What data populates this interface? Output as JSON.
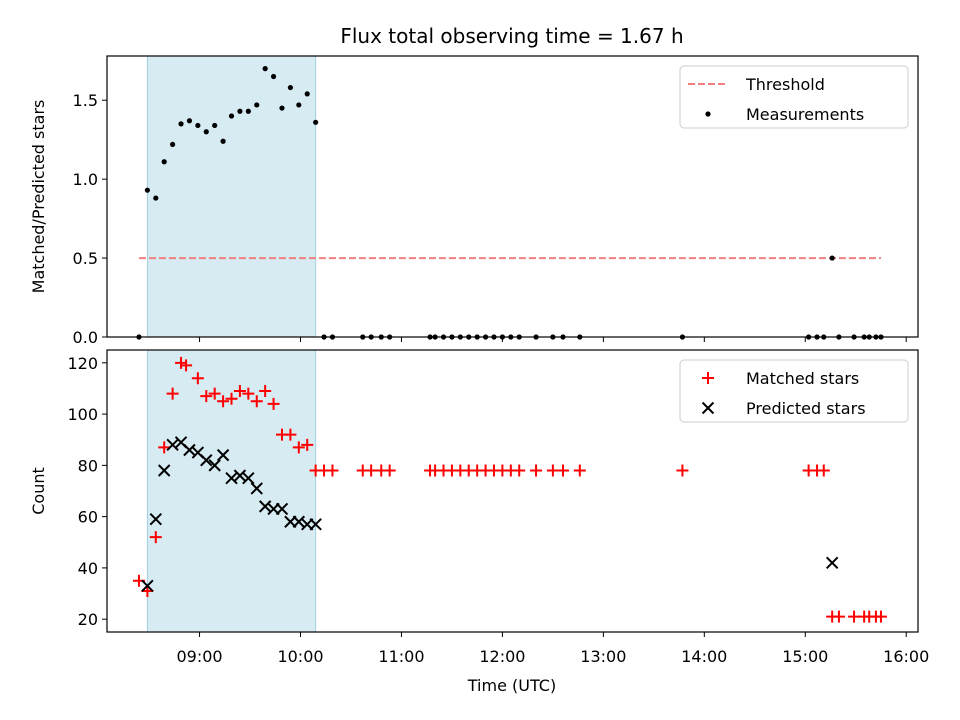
{
  "title": "Flux total observing time = 1.67 h",
  "xlabel": "Time (UTC)",
  "chart_data": [
    {
      "type": "scatter",
      "ylabel": "Matched/Predicted stars",
      "ylim": [
        0,
        1.78
      ],
      "xlim": [
        "08:05",
        "16:07"
      ],
      "yticks": [
        "0.0",
        "0.5",
        "1.0",
        "1.5"
      ],
      "shaded_interval": [
        "08:29",
        "10:09"
      ],
      "threshold": {
        "name": "Threshold",
        "y": 0.5,
        "x": [
          "08:24",
          "15:45"
        ],
        "color": "#f08080"
      },
      "legend": {
        "position": "upper right",
        "entries": [
          "Threshold",
          "Measurements"
        ]
      },
      "series": [
        {
          "name": "Measurements",
          "color": "#000000",
          "x": [
            "08:24",
            "08:29",
            "08:34",
            "08:39",
            "08:44",
            "08:49",
            "08:54",
            "08:59",
            "09:04",
            "09:09",
            "09:14",
            "09:19",
            "09:24",
            "09:29",
            "09:34",
            "09:39",
            "09:44",
            "09:49",
            "09:54",
            "09:59",
            "10:04",
            "10:09",
            "10:14",
            "10:19",
            "10:37",
            "10:42",
            "10:48",
            "10:53",
            "11:17",
            "11:20",
            "11:25",
            "11:30",
            "11:35",
            "11:40",
            "11:45",
            "11:50",
            "11:55",
            "12:00",
            "12:05",
            "12:10",
            "12:20",
            "12:30",
            "12:36",
            "12:46",
            "13:47",
            "15:02",
            "15:07",
            "15:11",
            "15:16",
            "15:20",
            "15:29",
            "15:35",
            "15:38",
            "15:42",
            "15:45"
          ],
          "y": [
            0,
            0.93,
            0.88,
            1.11,
            1.22,
            1.35,
            1.37,
            1.34,
            1.3,
            1.34,
            1.24,
            1.4,
            1.43,
            1.43,
            1.47,
            1.7,
            1.65,
            1.45,
            1.58,
            1.47,
            1.54,
            1.36,
            0,
            0,
            0,
            0,
            0,
            0,
            0,
            0,
            0,
            0,
            0,
            0,
            0,
            0,
            0,
            0,
            0,
            0,
            0,
            0,
            0,
            0,
            0,
            0,
            0,
            0,
            0.5,
            0,
            0,
            0,
            0,
            0,
            0
          ]
        }
      ]
    },
    {
      "type": "scatter",
      "ylabel": "Count",
      "ylim": [
        15,
        125
      ],
      "xlim": [
        "08:05",
        "16:07"
      ],
      "yticks": [
        "20",
        "40",
        "60",
        "80",
        "100",
        "120"
      ],
      "xticks": [
        "09:00",
        "10:00",
        "11:00",
        "12:00",
        "13:00",
        "14:00",
        "15:00",
        "16:00"
      ],
      "shaded_interval": [
        "08:29",
        "10:09"
      ],
      "legend": {
        "position": "upper right",
        "entries": [
          "Matched stars",
          "Predicted stars"
        ]
      },
      "series": [
        {
          "name": "Matched stars",
          "marker": "plus",
          "color": "#ff0000",
          "x": [
            "08:24",
            "08:29",
            "08:34",
            "08:39",
            "08:44",
            "08:49",
            "08:52",
            "08:59",
            "09:04",
            "09:09",
            "09:14",
            "09:19",
            "09:24",
            "09:29",
            "09:34",
            "09:39",
            "09:44",
            "09:49",
            "09:54",
            "09:59",
            "10:04",
            "10:09",
            "10:14",
            "10:19",
            "10:37",
            "10:42",
            "10:48",
            "10:53",
            "11:17",
            "11:20",
            "11:25",
            "11:30",
            "11:35",
            "11:40",
            "11:45",
            "11:50",
            "11:55",
            "12:00",
            "12:05",
            "12:10",
            "12:20",
            "12:30",
            "12:36",
            "12:46",
            "13:47",
            "15:02",
            "15:07",
            "15:11",
            "15:16",
            "15:20",
            "15:29",
            "15:35",
            "15:38",
            "15:42",
            "15:45"
          ],
          "y": [
            35,
            31,
            52,
            87,
            108,
            120,
            119,
            114,
            107,
            108,
            105,
            106,
            109,
            108,
            105,
            109,
            104,
            92,
            92,
            87,
            88,
            78,
            78,
            78,
            78,
            78,
            78,
            78,
            78,
            78,
            78,
            78,
            78,
            78,
            78,
            78,
            78,
            78,
            78,
            78,
            78,
            78,
            78,
            78,
            78,
            78,
            78,
            78,
            21,
            21,
            21,
            21,
            21,
            21,
            21
          ]
        },
        {
          "name": "Predicted stars",
          "marker": "x",
          "color": "#000000",
          "x": [
            "08:29",
            "08:34",
            "08:39",
            "08:44",
            "08:49",
            "08:54",
            "08:59",
            "09:04",
            "09:09",
            "09:14",
            "09:19",
            "09:24",
            "09:29",
            "09:34",
            "09:39",
            "09:44",
            "09:49",
            "09:54",
            "09:59",
            "10:04",
            "10:09",
            "15:16"
          ],
          "y": [
            33,
            59,
            78,
            88,
            89,
            86,
            85,
            82,
            80,
            84,
            75,
            76,
            75,
            71,
            64,
            63,
            63,
            58,
            58,
            57,
            57,
            42
          ]
        }
      ]
    }
  ]
}
